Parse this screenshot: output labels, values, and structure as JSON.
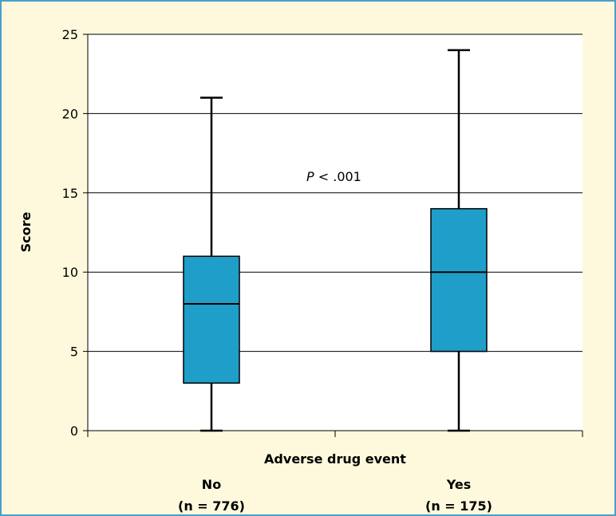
{
  "chart_data": {
    "type": "box",
    "xlabel": "Adverse drug event",
    "ylabel": "Score",
    "ylim": [
      0,
      25
    ],
    "yticks": [
      0,
      5,
      10,
      15,
      20,
      25
    ],
    "grid": true,
    "categories": [
      {
        "label": "No",
        "n_label": "(n = 776)"
      },
      {
        "label": "Yes",
        "n_label": "(n = 175)"
      }
    ],
    "boxes": [
      {
        "min": 0,
        "q1": 3,
        "median": 8,
        "q3": 11,
        "max": 21
      },
      {
        "min": 0,
        "q1": 5,
        "median": 10,
        "q3": 14,
        "max": 24
      }
    ],
    "annotation": {
      "italic": "P",
      "rest": " < .001"
    },
    "colors": {
      "box_fill": "#1f9ec9",
      "frame_border": "#4a9fc8",
      "background": "#fef9dc",
      "plot_background": "#ffffff"
    }
  }
}
